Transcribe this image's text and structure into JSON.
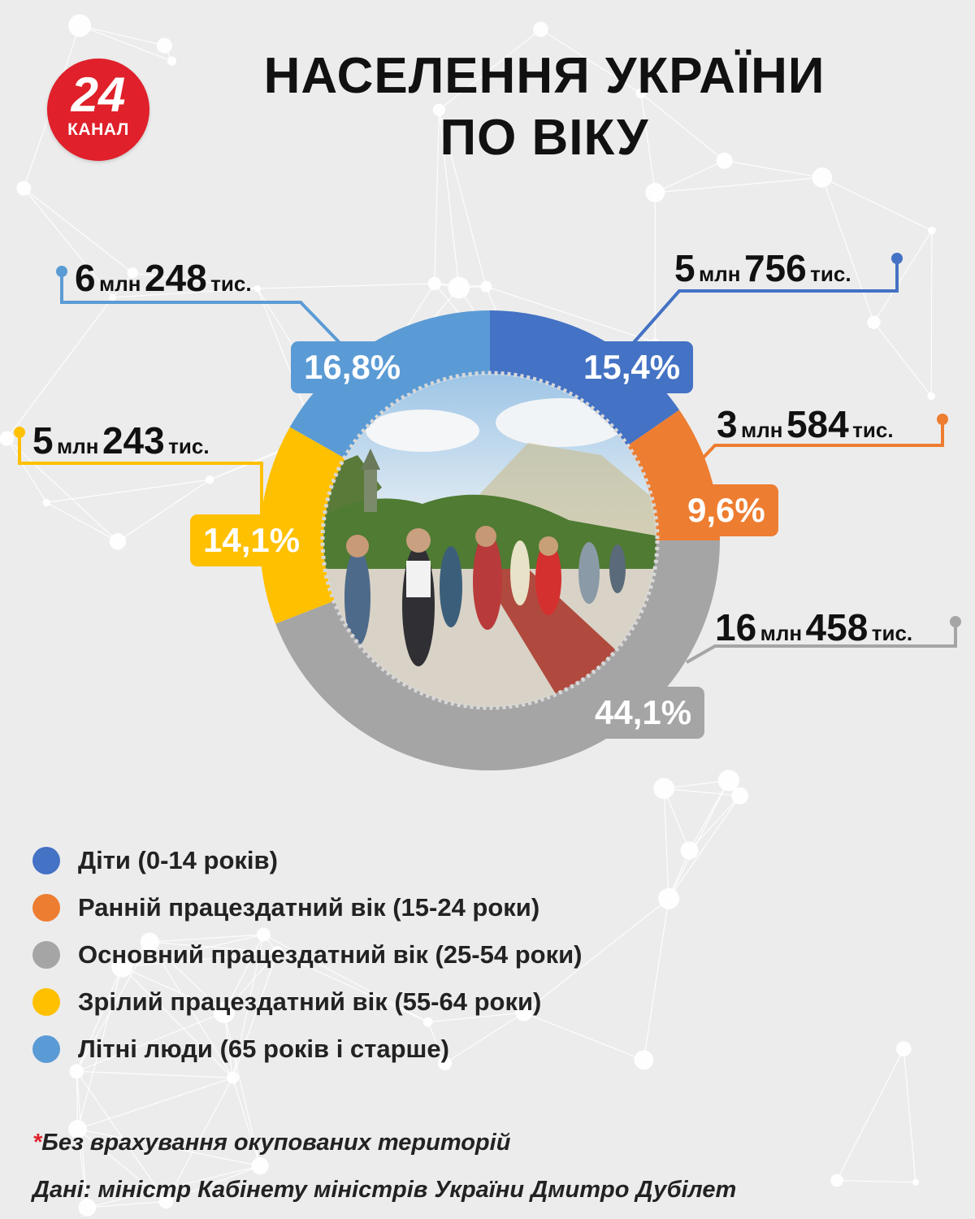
{
  "logo": {
    "number": "24",
    "word": "КАНАЛ"
  },
  "title": {
    "line1": "НАСЕЛЕННЯ УКРАЇНИ",
    "line2": "ПО ВІКУ"
  },
  "chart_data": {
    "type": "pie",
    "variant": "donut",
    "title": "НАСЕЛЕННЯ УКРАЇНИ ПО ВІКУ",
    "categories": [
      "Діти (0-14 років)",
      "Ранній працездатний вік (15-24 роки)",
      "Основний працездатний вік (25-54 роки)",
      "Зрілий працездатний вік (55-64 роки)",
      "Літні люди (65 років і старше)"
    ],
    "values": [
      15.4,
      9.6,
      44.1,
      14.1,
      16.8
    ],
    "percent_labels": [
      "15,4%",
      "9,6%",
      "44,1%",
      "14,1%",
      "16,8%"
    ],
    "count_labels": [
      {
        "mln": "5",
        "mln_unit": "млн",
        "ths": "756",
        "ths_unit": "тис."
      },
      {
        "mln": "3",
        "mln_unit": "млн",
        "ths": "584",
        "ths_unit": "тис."
      },
      {
        "mln": "16",
        "mln_unit": "млн",
        "ths": "458",
        "ths_unit": "тис."
      },
      {
        "mln": "5",
        "mln_unit": "млн",
        "ths": "243",
        "ths_unit": "тис."
      },
      {
        "mln": "6",
        "mln_unit": "млн",
        "ths": "248",
        "ths_unit": "тис."
      }
    ],
    "colors": [
      "#4472c4",
      "#ed7d31",
      "#a5a5a5",
      "#ffc000",
      "#5b9bd5"
    ],
    "legend_position": "bottom-left"
  },
  "footnote": {
    "star": "*",
    "text": "Без врахування окупованих територій"
  },
  "source": "Дані: міністр Кабінету міністрів України Дмитро Дубілет"
}
